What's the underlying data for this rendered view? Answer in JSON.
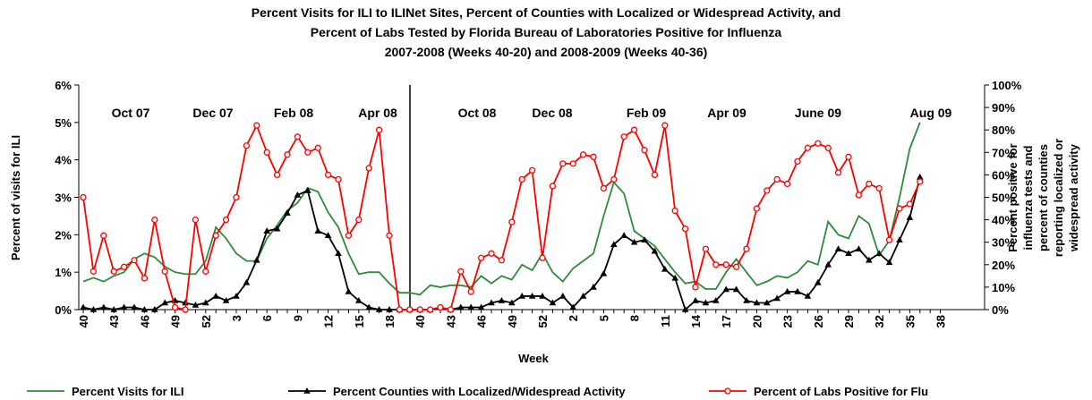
{
  "chart_data": {
    "type": "line",
    "title": [
      "Percent Visits for ILI to ILINet Sites, Percent of Counties with Localized or Widespread Activity, and",
      "Percent of Labs Tested by Florida Bureau of Laboratories Positive for Influenza",
      "2007-2008 (Weeks 40-20) and 2008-2009 (Weeks 40-36)"
    ],
    "x_label": "Week",
    "y_label": "Percent of visits for ILI",
    "y2_label": [
      "Percent positive for",
      "influenza tests and",
      "percent of counties",
      "reporting localized or",
      "widespread activity"
    ],
    "annotations": [
      "Oct 07",
      "Dec 07",
      "Feb 08",
      "Apr 08",
      "Oct 08",
      "Dec 08",
      "Feb 09",
      "Apr 09",
      "June 09",
      "Aug 09"
    ],
    "categories": [
      "40",
      null,
      null,
      "43",
      null,
      null,
      "46",
      null,
      null,
      "49",
      null,
      null,
      "52",
      null,
      null,
      "3",
      null,
      null,
      "6",
      null,
      null,
      "9",
      null,
      null,
      "12",
      null,
      null,
      "15",
      null,
      null,
      "18",
      null,
      null,
      "40",
      null,
      null,
      "43",
      null,
      null,
      "46",
      null,
      null,
      "49",
      null,
      null,
      "52",
      null,
      null,
      "2",
      null,
      null,
      "5",
      null,
      null,
      "8",
      null,
      null,
      "11",
      null,
      null,
      "14",
      null,
      null,
      "17",
      null,
      null,
      "20",
      null,
      null,
      "23",
      null,
      null,
      "26",
      null,
      null,
      "29",
      null,
      null,
      "32",
      null,
      null,
      "35",
      null,
      null,
      "38"
    ],
    "ylim": [
      0,
      6
    ],
    "yticks": [
      {
        "value": 0,
        "label": "0%"
      },
      {
        "value": 1,
        "label": "1%"
      },
      {
        "value": 2,
        "label": "2%"
      },
      {
        "value": 3,
        "label": "3%"
      },
      {
        "value": 4,
        "label": "4%"
      },
      {
        "value": 5,
        "label": "5%"
      },
      {
        "value": 6,
        "label": "6%"
      }
    ],
    "y2lim": [
      0,
      100
    ],
    "y2ticks": [
      {
        "value": 0,
        "label": "0%"
      },
      {
        "value": 10,
        "label": "10%"
      },
      {
        "value": 20,
        "label": "20%"
      },
      {
        "value": 30,
        "label": "30%"
      },
      {
        "value": 40,
        "label": "40%"
      },
      {
        "value": 50,
        "label": "50%"
      },
      {
        "value": 60,
        "label": "60%"
      },
      {
        "value": 70,
        "label": "70%"
      },
      {
        "value": 80,
        "label": "80%"
      },
      {
        "value": 90,
        "label": "90%"
      },
      {
        "value": 100,
        "label": "100%"
      }
    ],
    "series": [
      {
        "name": "Percent Visits for ILI",
        "color": "#2e8b3c",
        "marker": "none",
        "values": [
          0.75,
          0.85,
          0.75,
          0.9,
          1.0,
          1.35,
          1.5,
          1.4,
          1.15,
          1.0,
          0.95,
          0.95,
          1.3,
          2.2,
          1.9,
          1.5,
          1.3,
          1.3,
          1.9,
          2.25,
          2.65,
          2.85,
          3.25,
          3.15,
          2.6,
          2.2,
          1.5,
          0.95,
          1.0,
          1.0,
          0.7,
          0.45,
          0.45,
          0.4,
          0.65,
          0.6,
          0.65,
          0.65,
          0.6,
          0.9,
          0.7,
          0.9,
          0.8,
          1.2,
          1.05,
          1.5,
          1.0,
          0.75,
          1.1,
          1.3,
          1.5,
          2.5,
          3.4,
          3.1,
          2.1,
          1.9,
          1.7,
          1.35,
          1.0,
          0.7,
          0.75,
          0.55,
          0.55,
          1.0,
          1.35,
          1.0,
          0.65,
          0.75,
          0.9,
          0.85,
          1.0,
          1.3,
          1.2,
          2.35,
          2.0,
          1.9,
          2.5,
          2.3,
          1.45,
          1.85,
          3.0,
          4.3,
          5.0,
          null,
          null
        ]
      },
      {
        "name": "Percent Counties with Localized/Widespread Activity",
        "color": "#000000",
        "marker": "triangle",
        "axis": "y2",
        "values": [
          1,
          0,
          1,
          0,
          1,
          1,
          0,
          0,
          3,
          4,
          3,
          2,
          3,
          6,
          4,
          6,
          12,
          22,
          35,
          36,
          43,
          51,
          53,
          35,
          33,
          25,
          8,
          4,
          1,
          0,
          0,
          0,
          0,
          0,
          0,
          1,
          0,
          1,
          1,
          1,
          3,
          4,
          3,
          6,
          6,
          6,
          3,
          6,
          1,
          6,
          10,
          16,
          29,
          33,
          30,
          31,
          26,
          18,
          14,
          0,
          4,
          3,
          4,
          9,
          9,
          4,
          3,
          3,
          5,
          8,
          8,
          6,
          12,
          20,
          27,
          25,
          27,
          22,
          25,
          21,
          31,
          41,
          59,
          null,
          null
        ]
      },
      {
        "name": "Percent of Labs Positive for Flu",
        "color": "#ff0000",
        "marker": "circle",
        "axis": "y2",
        "values": [
          50,
          17,
          33,
          17,
          19,
          22,
          14,
          40,
          17,
          1,
          0,
          40,
          17,
          33,
          40,
          50,
          73,
          82,
          70,
          60,
          69,
          77,
          70,
          72,
          60,
          58,
          33,
          40,
          63,
          80,
          33,
          0,
          0,
          0,
          0,
          1,
          0,
          17,
          8,
          23,
          25,
          22,
          39,
          58,
          62,
          23,
          55,
          65,
          65,
          69,
          68,
          54,
          58,
          77,
          80,
          71,
          60,
          82,
          44,
          36,
          10,
          27,
          20,
          20,
          19,
          27,
          45,
          53,
          58,
          56,
          66,
          72,
          74,
          72,
          61,
          68,
          51,
          56,
          54,
          31,
          45,
          47,
          57,
          null,
          null
        ]
      }
    ]
  }
}
